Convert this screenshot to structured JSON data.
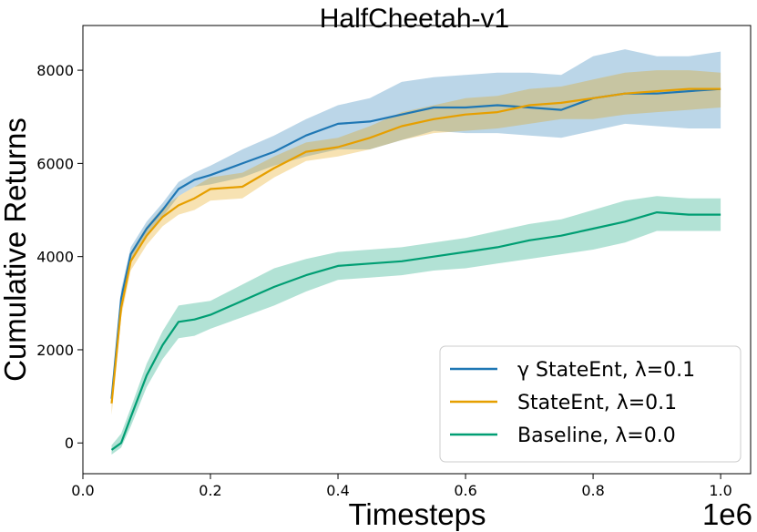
{
  "chart_data": {
    "type": "line",
    "title": "HalfCheetah-v1",
    "xlabel": "Timesteps",
    "ylabel": "Cumulative Returns",
    "x_offset_label": "1e6",
    "xlim": [
      0.0,
      1.047
    ],
    "ylim": [
      -660,
      8960
    ],
    "xticks": [
      0.0,
      0.2,
      0.4,
      0.6,
      0.8,
      1.0
    ],
    "xtick_labels": [
      "0.0",
      "0.2",
      "0.4",
      "0.6",
      "0.8",
      "1.0"
    ],
    "yticks": [
      0,
      2000,
      4000,
      6000,
      8000
    ],
    "ytick_labels": [
      "0",
      "2000",
      "4000",
      "6000",
      "8000"
    ],
    "grid": false,
    "legend_position": "lower-right",
    "x": [
      0.045,
      0.06,
      0.075,
      0.1,
      0.125,
      0.15,
      0.175,
      0.2,
      0.25,
      0.3,
      0.35,
      0.4,
      0.45,
      0.5,
      0.55,
      0.6,
      0.65,
      0.7,
      0.75,
      0.8,
      0.85,
      0.9,
      0.95,
      1.0
    ],
    "series": [
      {
        "name": "γ StateEnt, λ=0.1",
        "color": "#1f77b4",
        "values": [
          950,
          3100,
          4050,
          4600,
          5000,
          5450,
          5650,
          5750,
          6000,
          6250,
          6600,
          6850,
          6900,
          7050,
          7200,
          7200,
          7250,
          7200,
          7150,
          7400,
          7500,
          7500,
          7550,
          7600
        ],
        "lower": [
          850,
          2900,
          3900,
          4450,
          4850,
          5300,
          5500,
          5550,
          5700,
          5950,
          6150,
          6300,
          6300,
          6500,
          6700,
          6650,
          6650,
          6600,
          6550,
          6700,
          6850,
          6800,
          6750,
          6750
        ],
        "upper": [
          1100,
          3300,
          4200,
          4750,
          5150,
          5600,
          5800,
          5950,
          6300,
          6600,
          6950,
          7250,
          7400,
          7750,
          7850,
          7900,
          7950,
          7950,
          7900,
          8300,
          8450,
          8300,
          8300,
          8400
        ]
      },
      {
        "name": "StateEnt, λ=0.1",
        "color": "#e69f00",
        "values": [
          850,
          2900,
          3900,
          4450,
          4850,
          5100,
          5250,
          5450,
          5500,
          5900,
          6250,
          6350,
          6550,
          6800,
          6950,
          7050,
          7100,
          7250,
          7300,
          7400,
          7500,
          7550,
          7600,
          7600
        ],
        "lower": [
          600,
          2700,
          3700,
          4250,
          4650,
          4900,
          5000,
          5200,
          5250,
          5700,
          6050,
          6150,
          6300,
          6500,
          6650,
          6700,
          6750,
          6850,
          6950,
          6950,
          7050,
          7100,
          7150,
          7200
        ],
        "upper": [
          1050,
          3100,
          4100,
          4650,
          5050,
          5300,
          5500,
          5700,
          5800,
          6150,
          6450,
          6550,
          6800,
          7100,
          7250,
          7400,
          7450,
          7600,
          7650,
          7800,
          7950,
          8000,
          8000,
          7950
        ]
      },
      {
        "name": "Baseline, λ=0.0",
        "color": "#009e73",
        "values": [
          -150,
          0,
          550,
          1450,
          2100,
          2600,
          2650,
          2750,
          3050,
          3350,
          3600,
          3800,
          3850,
          3900,
          4000,
          4100,
          4200,
          4350,
          4450,
          4600,
          4750,
          4950,
          4900,
          4900
        ],
        "lower": [
          -250,
          -100,
          350,
          1200,
          1800,
          2250,
          2300,
          2450,
          2700,
          2950,
          3250,
          3500,
          3550,
          3600,
          3700,
          3750,
          3850,
          3950,
          4050,
          4150,
          4300,
          4550,
          4550,
          4550
        ],
        "upper": [
          -50,
          200,
          750,
          1700,
          2400,
          2950,
          3000,
          3050,
          3400,
          3750,
          3950,
          4100,
          4150,
          4200,
          4300,
          4400,
          4550,
          4700,
          4800,
          5000,
          5200,
          5300,
          5250,
          5250
        ]
      }
    ]
  }
}
